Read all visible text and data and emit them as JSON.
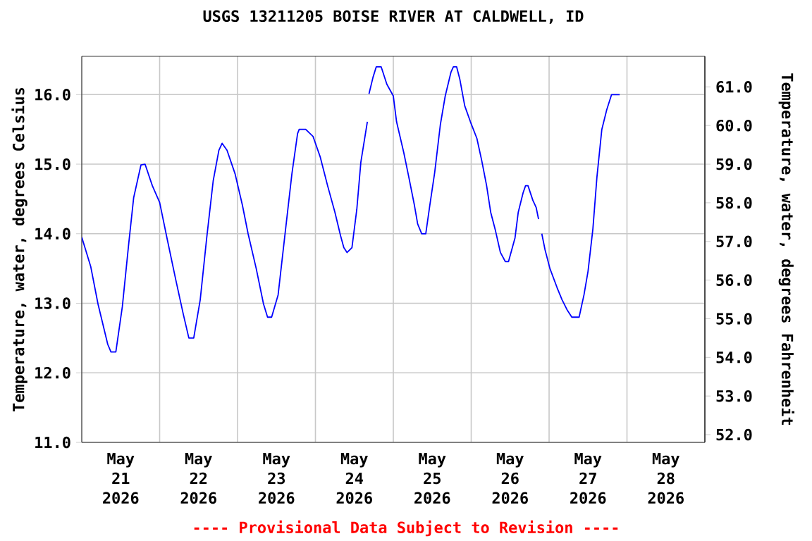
{
  "chart_data": {
    "type": "line",
    "title": "USGS 13211205 BOISE RIVER AT CALDWELL, ID",
    "ylabel": "Temperature, water, degrees Celsius",
    "y2label": "Temperature, water, degrees Fahrenheit",
    "annotations": [
      "---- Provisional Data Subject to Revision ----"
    ],
    "color": "#0000ff",
    "grid": true,
    "xlim": [
      "2026-05-21T00:00",
      "2026-05-29T00:00"
    ],
    "xticks": [
      {
        "value": "2026-05-21T00:00",
        "label": null
      },
      {
        "value": "2026-05-21T12:00",
        "label": "May 21 2026"
      },
      {
        "value": "2026-05-22T00:00",
        "label": null
      },
      {
        "value": "2026-05-22T12:00",
        "label": "May 22 2026"
      },
      {
        "value": "2026-05-23T00:00",
        "label": null
      },
      {
        "value": "2026-05-23T12:00",
        "label": "May 23 2026"
      },
      {
        "value": "2026-05-24T00:00",
        "label": null
      },
      {
        "value": "2026-05-24T12:00",
        "label": "May 24 2026"
      },
      {
        "value": "2026-05-25T00:00",
        "label": null
      },
      {
        "value": "2026-05-25T12:00",
        "label": "May 25 2026"
      },
      {
        "value": "2026-05-26T00:00",
        "label": null
      },
      {
        "value": "2026-05-26T12:00",
        "label": "May 26 2026"
      },
      {
        "value": "2026-05-27T00:00",
        "label": null
      },
      {
        "value": "2026-05-27T12:00",
        "label": "May 27 2026"
      },
      {
        "value": "2026-05-28T00:00",
        "label": null
      },
      {
        "value": "2026-05-28T12:00",
        "label": "May 28 2026"
      },
      {
        "value": "2026-05-29T00:00",
        "label": null
      }
    ],
    "ylim": [
      11,
      16.55
    ],
    "yticks": [
      {
        "value": 11,
        "label": "11.0"
      },
      {
        "value": 12,
        "label": "12.0"
      },
      {
        "value": 13,
        "label": "13.0"
      },
      {
        "value": 14,
        "label": "14.0"
      },
      {
        "value": 15,
        "label": "15.0"
      },
      {
        "value": 16,
        "label": "16.0"
      }
    ],
    "y2lim": [
      51.8,
      61.79
    ],
    "y2ticks": [
      {
        "value": 52,
        "label": "52.0"
      },
      {
        "value": 53,
        "label": "53.0"
      },
      {
        "value": 54,
        "label": "54.0"
      },
      {
        "value": 55,
        "label": "55.0"
      },
      {
        "value": 56,
        "label": "56.0"
      },
      {
        "value": 57,
        "label": "57.0"
      },
      {
        "value": 58,
        "label": "58.0"
      },
      {
        "value": 59,
        "label": "59.0"
      },
      {
        "value": 60,
        "label": "60.0"
      },
      {
        "value": 61,
        "label": "61.0"
      }
    ],
    "x": [
      "2026-05-21T00:00",
      "2026-05-21T02:45",
      "2026-05-21T05:00",
      "2026-05-21T08:00",
      "2026-05-21T09:00",
      "2026-05-21T10:30",
      "2026-05-21T12:30",
      "2026-05-21T14:30",
      "2026-05-21T16:00",
      "2026-05-21T18:15",
      "2026-05-21T19:30",
      "2026-05-21T21:45",
      "2026-05-22T00:00",
      "2026-05-22T02:15",
      "2026-05-22T05:00",
      "2026-05-22T07:15",
      "2026-05-22T09:00",
      "2026-05-22T10:30",
      "2026-05-22T12:30",
      "2026-05-22T14:30",
      "2026-05-22T16:30",
      "2026-05-22T18:15",
      "2026-05-22T19:15",
      "2026-05-22T20:45",
      "2026-05-22T23:15",
      "2026-05-23T01:30",
      "2026-05-23T03:15",
      "2026-05-23T05:45",
      "2026-05-23T08:00",
      "2026-05-23T09:15",
      "2026-05-23T10:30",
      "2026-05-23T12:30",
      "2026-05-23T14:30",
      "2026-05-23T16:45",
      "2026-05-23T18:30",
      "2026-05-23T19:00",
      "2026-05-23T21:00",
      "2026-05-23T23:15",
      "2026-05-24T01:30",
      "2026-05-24T03:45",
      "2026-05-24T06:00",
      "2026-05-24T07:45",
      "2026-05-24T08:45",
      "2026-05-24T09:45",
      "2026-05-24T11:15",
      "2026-05-24T12:45",
      "2026-05-24T14:00",
      "2026-05-24T16:00",
      "2026-05-24T16:15",
      "2026-05-24T16:30",
      "2026-05-24T17:45",
      "2026-05-24T18:45",
      "2026-05-24T20:15",
      "2026-05-24T22:00",
      "2026-05-25T00:00",
      "2026-05-25T01:00",
      "2026-05-25T03:15",
      "2026-05-25T04:45",
      "2026-05-25T06:30",
      "2026-05-25T07:30",
      "2026-05-25T08:45",
      "2026-05-25T10:00",
      "2026-05-25T11:15",
      "2026-05-25T12:45",
      "2026-05-25T14:30",
      "2026-05-25T16:00",
      "2026-05-25T17:45",
      "2026-05-25T18:30",
      "2026-05-25T19:30",
      "2026-05-25T20:30",
      "2026-05-25T22:00",
      "2026-05-25T23:45",
      "2026-05-26T01:45",
      "2026-05-26T03:15",
      "2026-05-26T04:45",
      "2026-05-26T06:00",
      "2026-05-26T07:30",
      "2026-05-26T09:00",
      "2026-05-26T10:30",
      "2026-05-26T11:30",
      "2026-05-26T13:30",
      "2026-05-26T14:30",
      "2026-05-26T16:00",
      "2026-05-26T16:45",
      "2026-05-26T17:30",
      "2026-05-26T19:00",
      "2026-05-26T20:00",
      "2026-05-26T20:45",
      "2026-05-26T21:15",
      "2026-05-26T21:45",
      "2026-05-26T22:45",
      "2026-05-27T00:15",
      "2026-05-27T02:30",
      "2026-05-27T04:00",
      "2026-05-27T05:30",
      "2026-05-27T07:00",
      "2026-05-27T09:15",
      "2026-05-27T10:45",
      "2026-05-27T12:00",
      "2026-05-27T13:30",
      "2026-05-27T14:45",
      "2026-05-27T16:15",
      "2026-05-27T17:45",
      "2026-05-27T19:15",
      "2026-05-27T21:45"
    ],
    "values": [
      13.95,
      13.53,
      12.99,
      12.41,
      12.3,
      12.3,
      12.95,
      13.87,
      14.52,
      14.99,
      15.0,
      14.69,
      14.45,
      13.94,
      13.33,
      12.85,
      12.5,
      12.5,
      13.05,
      13.94,
      14.76,
      15.2,
      15.3,
      15.2,
      14.86,
      14.41,
      14.0,
      13.5,
      12.99,
      12.8,
      12.8,
      13.12,
      13.94,
      14.86,
      15.44,
      15.5,
      15.5,
      15.4,
      15.1,
      14.69,
      14.31,
      13.97,
      13.8,
      13.73,
      13.8,
      14.35,
      15.03,
      15.61,
      null,
      16.01,
      16.25,
      16.4,
      16.4,
      16.15,
      15.98,
      15.61,
      15.16,
      14.82,
      14.41,
      14.14,
      14.0,
      14.0,
      14.41,
      14.88,
      15.57,
      15.98,
      16.32,
      16.4,
      16.4,
      16.22,
      15.84,
      15.61,
      15.37,
      15.05,
      14.69,
      14.31,
      14.04,
      13.73,
      13.6,
      13.6,
      13.94,
      14.31,
      14.59,
      14.69,
      14.69,
      14.48,
      14.38,
      14.21,
      null,
      14.0,
      13.77,
      13.5,
      13.22,
      13.05,
      12.91,
      12.8,
      12.8,
      13.12,
      13.46,
      14.07,
      14.82,
      15.5,
      15.78,
      16.0,
      16.0
    ]
  }
}
